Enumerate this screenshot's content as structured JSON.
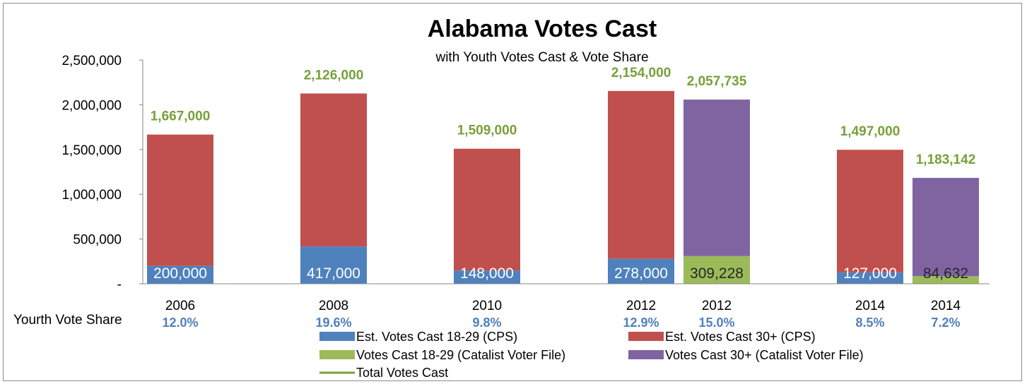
{
  "chart_data": {
    "type": "bar",
    "title": "Alabama Votes Cast",
    "subtitle": "with Youth Votes Cast & Vote Share",
    "ylim": [
      0,
      2500000
    ],
    "y_ticks": [
      "-",
      "500,000",
      "1,000,000",
      "1,500,000",
      "2,000,000",
      "2,500,000"
    ],
    "categories": [
      "2006",
      "2008",
      "2010",
      "2012",
      "2012",
      "2014",
      "2014"
    ],
    "series": [
      {
        "name": "Est. Votes Cast 18-29 (CPS)",
        "color": "#4f81bd",
        "values": [
          200000,
          417000,
          148000,
          278000,
          null,
          127000,
          null
        ]
      },
      {
        "name": "Est. Votes Cast 30+ (CPS)",
        "color": "#c0504d",
        "values": [
          1467000,
          1709000,
          1361000,
          1876000,
          null,
          1370000,
          null
        ]
      },
      {
        "name": "Votes Cast 18-29 (Catalist Voter File)",
        "color": "#9bbb59",
        "values": [
          null,
          null,
          null,
          null,
          309228,
          null,
          84632
        ]
      },
      {
        "name": "Votes Cast 30+ (Catalist Voter File)",
        "color": "#8064a2",
        "values": [
          null,
          null,
          null,
          null,
          1748507,
          null,
          1098510
        ]
      },
      {
        "name": "Total Votes Cast",
        "color": "#77a03a",
        "values": [
          1667000,
          2126000,
          1509000,
          2154000,
          2057735,
          1497000,
          1183142
        ]
      }
    ],
    "bottom_labels": [
      "200,000",
      "417,000",
      "148,000",
      "278,000",
      "309,228",
      "127,000",
      "84,632"
    ],
    "total_labels": [
      "1,667,000",
      "2,126,000",
      "1,509,000",
      "2,154,000",
      "2,057,735",
      "1,497,000",
      "1,183,142"
    ],
    "youth_share_title": "Yourth Vote Share",
    "youth_share": [
      "12.0%",
      "19.6%",
      "9.8%",
      "12.9%",
      "15.0%",
      "8.5%",
      "7.2%"
    ],
    "legend_placement": "bottom",
    "grid": false
  }
}
